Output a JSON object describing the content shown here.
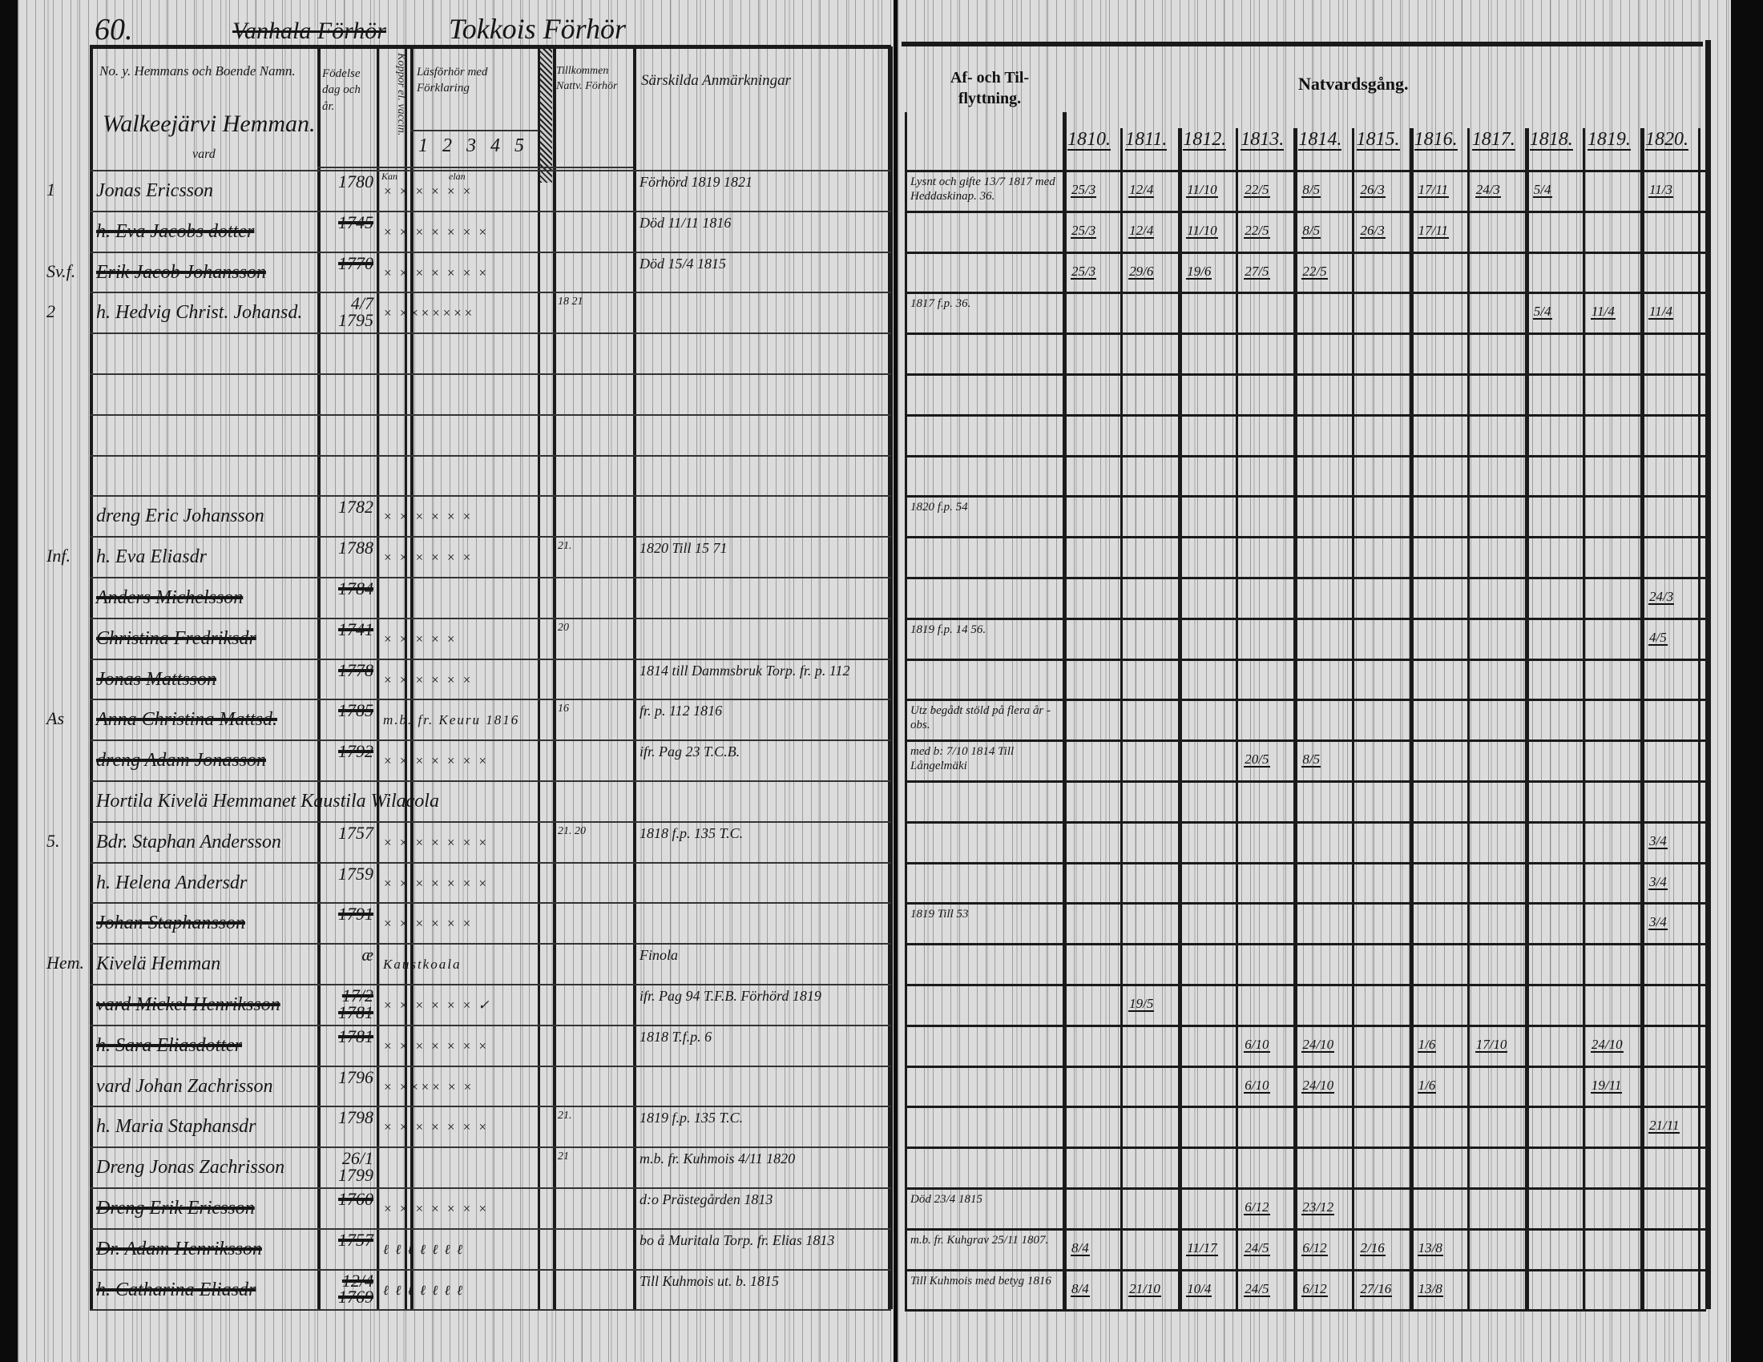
{
  "left_page": {
    "page_number": "60.",
    "struck_title": "Vanhala Förhör",
    "title": "Tokkois Förhör",
    "headers": {
      "name": "No. y. Hemmans och Boende Namn.",
      "village": "Walkeejärvi Hemman.",
      "village_note": "vard",
      "birth": "Födelse dag och år.",
      "vaccine": "Koppor el. vaccin.",
      "reading": "Läsförhör med Förklaring",
      "reading_numbers": "1 2 3 4 5 6",
      "reading_note": "Kan",
      "reading_note2": "elan",
      "communion": "Tillkommen Nattv. Förhör",
      "remarks": "Särskilda Anmärkningar"
    },
    "margin_marks": [
      {
        "row": 0,
        "text": "1"
      },
      {
        "row": 2,
        "text": "Sv.f."
      },
      {
        "row": 3,
        "text": "2"
      },
      {
        "row": 9,
        "text": "Inf."
      },
      {
        "row": 13,
        "text": "As"
      },
      {
        "row": 16,
        "text": "5."
      },
      {
        "row": 19,
        "text": "Hem."
      }
    ],
    "rows": [
      {
        "row": 0,
        "name": "Jonas Ericsson",
        "birth": "1780",
        "marks": "× × × × × ×",
        "struck": false,
        "remark": "Förhörd 1819 1821"
      },
      {
        "row": 1,
        "name": "h. Eva Jacobs dotter",
        "birth": "1745",
        "marks": "× × × × × × ×",
        "struck": true,
        "remark": "Död 11/11 1816"
      },
      {
        "row": 2,
        "name": "Erik Jacob Johansson",
        "birth": "1770",
        "marks": "× × × × × × ×",
        "struck": true,
        "remark": "Död 15/4 1815"
      },
      {
        "row": 3,
        "name": "h. Hedvig Christ. Johansd.",
        "birth": "4/7 1795",
        "marks": "× ×××××××",
        "struck": false,
        "communion": "18 21"
      },
      {
        "row": 8,
        "name": "dreng Eric Johansson",
        "birth": "1782",
        "marks": "× × × × × ×",
        "struck": false
      },
      {
        "row": 9,
        "name": "h. Eva Eliasdr",
        "birth": "1788",
        "marks": "× × × × × ×",
        "struck": false,
        "communion": "21.",
        "remark": "1820 Till 15 71"
      },
      {
        "row": 10,
        "name": "Anders Michelsson",
        "birth": "1784",
        "marks": "",
        "struck": true
      },
      {
        "row": 11,
        "name": "Christina Fredriksdr",
        "birth": "1741",
        "marks": "× × × × ×",
        "struck": true,
        "communion": "20"
      },
      {
        "row": 12,
        "name": "Jonas Mattsson",
        "birth": "1778",
        "marks": "× × × × × ×",
        "struck": true,
        "remark": "1814 till Dammsbruk Torp. fr. p. 112"
      },
      {
        "row": 13,
        "name": "Anna Christina Mattsd.",
        "birth": "1785",
        "marks": "m.b. fr. Keuru 1816",
        "struck": true,
        "communion": "16",
        "remark": "fr. p. 112 1816"
      },
      {
        "row": 14,
        "name": "dreng Adam Jonasson",
        "birth": "1792",
        "marks": "× × × × × × ×",
        "struck": true,
        "remark": "ifr. Pag 23 T.C.B."
      },
      {
        "row": 15,
        "name": "Hortila Kivelä Hemmanet Kaustila Wilacola",
        "birth": "",
        "marks": "",
        "struck": false,
        "wide": true
      },
      {
        "row": 16,
        "name": "Bdr. Staphan Andersson",
        "birth": "1757",
        "marks": "× × × × × × ×",
        "struck": false,
        "communion": "21.  20",
        "remark": "1818 f.p. 135 T.C."
      },
      {
        "row": 17,
        "name": "h. Helena Andersdr",
        "birth": "1759",
        "marks": "× × × × × × ×",
        "struck": false
      },
      {
        "row": 18,
        "name": "Johan Staphansson",
        "birth": "1791",
        "marks": "× × × × × ×",
        "struck": true
      },
      {
        "row": 19,
        "name": "Kivelä Hemman",
        "birth": "æ",
        "marks": "Kaustkoala",
        "struck": false,
        "remark": "Finola"
      },
      {
        "row": 20,
        "name": "vard Mickel Henriksson",
        "birth": "17/2 1781",
        "marks": "× × × × × × ✓",
        "struck": true,
        "remark": "ifr. Pag 94 T.F.B. Förhörd 1819"
      },
      {
        "row": 21,
        "name": "h. Sara Eliasdotter",
        "birth": "1781",
        "marks": "× × × × × × ×",
        "struck": true,
        "remark": "1818 T.f.p. 6"
      },
      {
        "row": 22,
        "name": "vard Johan Zachrisson",
        "birth": "1796",
        "marks": "× ×××× × ×",
        "struck": false
      },
      {
        "row": 23,
        "name": "h. Maria Staphansdr",
        "birth": "1798",
        "marks": "× × × × × × ×",
        "struck": false,
        "communion": "21.",
        "remark": "1819 f.p. 135 T.C."
      },
      {
        "row": 24,
        "name": "Dreng Jonas Zachrisson",
        "birth": "26/1 1799",
        "marks": "",
        "struck": false,
        "communion": "21",
        "remark": "m.b. fr. Kuhmois 4/11 1820"
      },
      {
        "row": 25,
        "name": "Dreng Erik Ericsson",
        "birth": "1760",
        "marks": "× × × × × × ×",
        "struck": true,
        "remark": "d:o Prästegården 1813"
      },
      {
        "row": 26,
        "name": "Dr. Adam Henriksson",
        "birth": "1757",
        "marks": "ℓ ℓ ℓ ℓ ℓ ℓ ℓ",
        "struck": true,
        "remark": "bo å Muritala Torp. fr. Elias 1813"
      },
      {
        "row": 27,
        "name": "h. Catharina Eliasdr",
        "birth": "12/4 1769",
        "marks": "ℓ ℓ ℓ ℓ ℓ ℓ ℓ",
        "struck": true,
        "remark": "Till Kuhmois ut. b. 1815"
      }
    ]
  },
  "right_page": {
    "headers": {
      "moving": "Af- och Til- flyttning.",
      "communion": "Natvardsgång.",
      "years": [
        "1810.",
        "1811.",
        "1812.",
        "1813.",
        "1814.",
        "1815.",
        "1816.",
        "1817.",
        "1818.",
        "1819.",
        "1820."
      ]
    },
    "rows": [
      {
        "row": 0,
        "moving": "Lysnt och gifte 13/7 1817 med Heddaskinap. 36.",
        "cells": [
          "25/3",
          "12/4",
          "11/10",
          "22/5",
          "8/5",
          "26/3",
          "17/11",
          "24/3",
          "5/4",
          "",
          "11/3"
        ]
      },
      {
        "row": 1,
        "moving": "",
        "cells": [
          "25/3",
          "12/4",
          "11/10",
          "22/5",
          "8/5",
          "26/3",
          "17/11",
          "",
          "",
          "",
          ""
        ]
      },
      {
        "row": 2,
        "moving": "",
        "cells": [
          "25/3",
          "29/6",
          "19/6",
          "27/5",
          "22/5",
          "",
          "",
          "",
          "",
          "",
          ""
        ]
      },
      {
        "row": 3,
        "moving": "1817 f.p. 36.",
        "cells": [
          "",
          "",
          "",
          "",
          "",
          "",
          "",
          "",
          "5/4",
          "11/4",
          "11/4"
        ]
      },
      {
        "row": 8,
        "moving": "1820 f.p. 54",
        "cells": [
          "",
          "",
          "",
          "",
          "",
          "",
          "",
          "",
          "",
          "",
          ""
        ]
      },
      {
        "row": 10,
        "moving": "",
        "cells": [
          "",
          "",
          "",
          "",
          "",
          "",
          "",
          "",
          "",
          "",
          "24/3"
        ]
      },
      {
        "row": 11,
        "moving": "1819 f.p. 14 56.",
        "cells": [
          "",
          "",
          "",
          "",
          "",
          "",
          "",
          "",
          "",
          "",
          "4/5"
        ]
      },
      {
        "row": 13,
        "moving": "Utz begådt stöld på flera år - obs.",
        "cells": [
          "",
          "",
          "",
          "",
          "",
          "",
          "",
          "",
          "",
          "",
          ""
        ]
      },
      {
        "row": 14,
        "moving": "med b: 7/10 1814 Till Långelmäki",
        "cells": [
          "",
          "",
          "",
          "20/5",
          "8/5",
          "",
          "",
          "",
          "",
          "",
          ""
        ]
      },
      {
        "row": 16,
        "moving": "",
        "cells": [
          "",
          "",
          "",
          "",
          "",
          "",
          "",
          "",
          "",
          "",
          "3/4"
        ]
      },
      {
        "row": 17,
        "moving": "",
        "cells": [
          "",
          "",
          "",
          "",
          "",
          "",
          "",
          "",
          "",
          "",
          "3/4"
        ]
      },
      {
        "row": 18,
        "moving": "1819 Till 53",
        "cells": [
          "",
          "",
          "",
          "",
          "",
          "",
          "",
          "",
          "",
          "",
          "3/4"
        ]
      },
      {
        "row": 20,
        "moving": "",
        "cells": [
          "",
          "19/5",
          "",
          "",
          "",
          "",
          "",
          "",
          "",
          "",
          ""
        ]
      },
      {
        "row": 21,
        "moving": "",
        "cells": [
          "",
          "",
          "",
          "6/10",
          "24/10",
          "",
          "1/6",
          "17/10",
          "",
          "24/10",
          ""
        ]
      },
      {
        "row": 22,
        "moving": "",
        "cells": [
          "",
          "",
          "",
          "6/10",
          "24/10",
          "",
          "1/6",
          "",
          "",
          "19/11",
          ""
        ]
      },
      {
        "row": 23,
        "moving": "",
        "cells": [
          "",
          "",
          "",
          "",
          "",
          "",
          "",
          "",
          "",
          "",
          "21/11"
        ]
      },
      {
        "row": 25,
        "moving": "Död 23/4 1815",
        "cells": [
          "",
          "",
          "",
          "6/12",
          "23/12",
          "",
          "",
          "",
          "",
          "",
          ""
        ]
      },
      {
        "row": 26,
        "moving": "m.b. fr. Kuhgrav 25/11 1807.",
        "cells": [
          "8/4",
          "",
          "11/17",
          "24/5",
          "6/12",
          "2/16",
          "13/8",
          "",
          "",
          "",
          ""
        ]
      },
      {
        "row": 27,
        "moving": "Till Kuhmois med betyg 1816",
        "cells": [
          "8/4",
          "21/10",
          "10/4",
          "24/5",
          "6/12",
          "27/16",
          "13/8",
          "",
          "",
          "",
          ""
        ]
      }
    ]
  }
}
